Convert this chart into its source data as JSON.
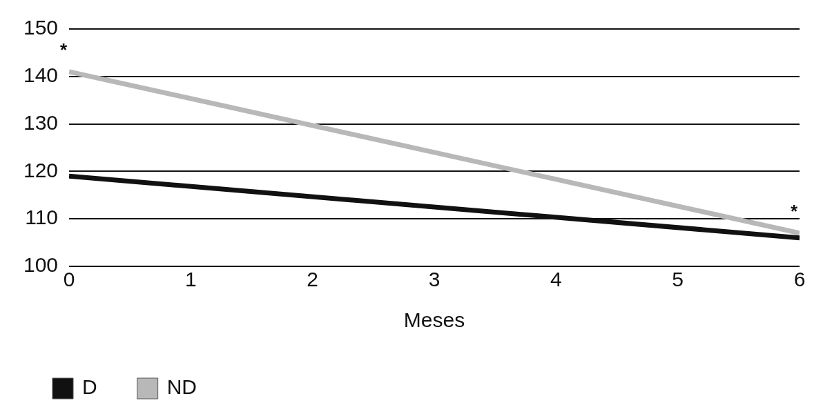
{
  "chart_data": {
    "type": "line",
    "xlabel": "Meses",
    "x": [
      0,
      6
    ],
    "series": [
      {
        "name": "D",
        "color": "#111111",
        "values": [
          119,
          106
        ]
      },
      {
        "name": "ND",
        "color": "#b8b8b8",
        "values": [
          141,
          107
        ]
      }
    ],
    "xlim": [
      0,
      6
    ],
    "xticks": [
      0,
      1,
      2,
      3,
      4,
      5,
      6
    ],
    "ylim": [
      100,
      150
    ],
    "yticks": [
      100,
      110,
      120,
      130,
      140,
      150
    ],
    "grid": "y",
    "legend": "bottom",
    "marker": "none",
    "line_style": "solid",
    "annotations": [
      "*",
      "*"
    ]
  }
}
